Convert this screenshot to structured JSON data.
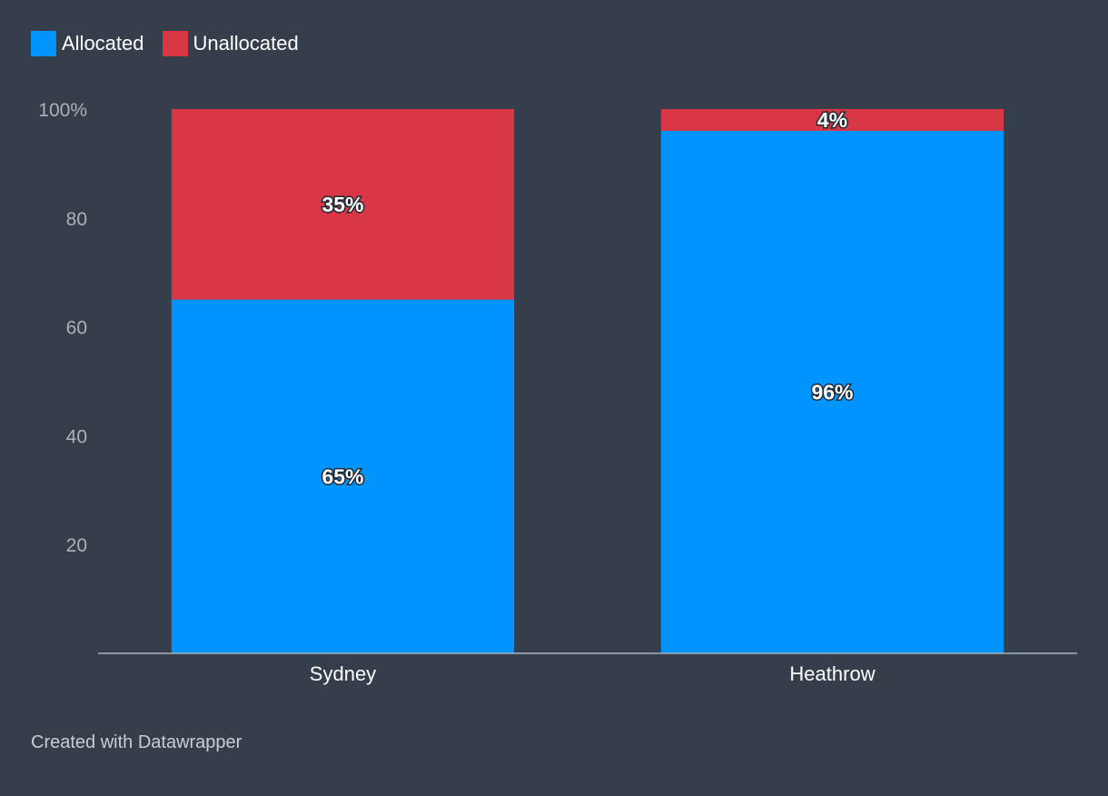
{
  "chart_data": {
    "type": "bar",
    "stacked": true,
    "categories": [
      "Sydney",
      "Heathrow"
    ],
    "series": [
      {
        "name": "Allocated",
        "values": [
          65,
          96
        ],
        "labels": [
          "65%",
          "96%"
        ],
        "color": "#0094ff"
      },
      {
        "name": "Unallocated",
        "values": [
          35,
          4
        ],
        "labels": [
          "35%",
          "4%"
        ],
        "color": "#d93646"
      }
    ],
    "ylim": [
      0,
      100
    ],
    "yticks": [
      {
        "value": 100,
        "label": "100%"
      },
      {
        "value": 80,
        "label": "80"
      },
      {
        "value": 60,
        "label": "60"
      },
      {
        "value": 40,
        "label": "40"
      },
      {
        "value": 20,
        "label": "20"
      }
    ],
    "legend_position": "top-left",
    "grid": false
  },
  "footer": {
    "credit": "Created with Datawrapper"
  }
}
